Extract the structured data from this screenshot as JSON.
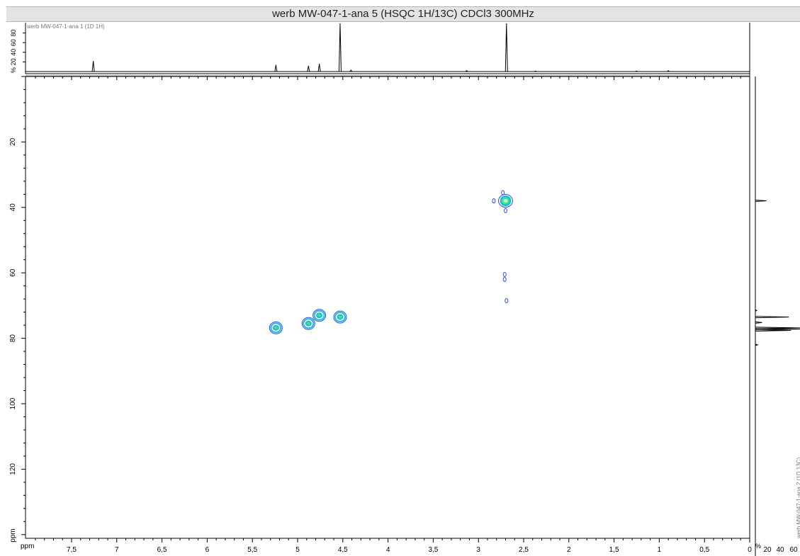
{
  "chart_data": {
    "type": "heatmap",
    "title": "werb MW-047-1-ana 5 (HSQC 1H/13C) CDCl3 300MHz",
    "x_unit_label": "ppm",
    "y_unit_label": "ppm",
    "xlim": [
      7.9,
      0
    ],
    "ylim": [
      0,
      140
    ],
    "x_ticks": [
      {
        "v": 7.5,
        "t": "7,5"
      },
      {
        "v": 7,
        "t": "7"
      },
      {
        "v": 6.5,
        "t": "6,5"
      },
      {
        "v": 6,
        "t": "6"
      },
      {
        "v": 5.5,
        "t": "5,5"
      },
      {
        "v": 5,
        "t": "5"
      },
      {
        "v": 4.5,
        "t": "4,5"
      },
      {
        "v": 4,
        "t": "4"
      },
      {
        "v": 3.5,
        "t": "3,5"
      },
      {
        "v": 3,
        "t": "3"
      },
      {
        "v": 2.5,
        "t": "2,5"
      },
      {
        "v": 2,
        "t": "2"
      },
      {
        "v": 1.5,
        "t": "1,5"
      },
      {
        "v": 1,
        "t": "1"
      },
      {
        "v": 0.5,
        "t": "0,5"
      },
      {
        "v": 0,
        "t": "0"
      }
    ],
    "y_ticks": [
      {
        "v": 20,
        "t": "20"
      },
      {
        "v": 40,
        "t": "40"
      },
      {
        "v": 60,
        "t": "60"
      },
      {
        "v": 80,
        "t": "80"
      },
      {
        "v": 100,
        "t": "100"
      },
      {
        "v": 120,
        "t": "120"
      }
    ],
    "cross_peaks": [
      {
        "h": 2.7,
        "c": 38,
        "intensity": "strong"
      },
      {
        "h": 2.73,
        "c": 35.5,
        "intensity": "weak"
      },
      {
        "h": 2.7,
        "c": 41,
        "intensity": "weak"
      },
      {
        "h": 2.83,
        "c": 38,
        "intensity": "weak"
      },
      {
        "h": 2.71,
        "c": 60.5,
        "intensity": "weak"
      },
      {
        "h": 2.71,
        "c": 62,
        "intensity": "weak"
      },
      {
        "h": 2.69,
        "c": 68.5,
        "intensity": "weak"
      },
      {
        "h": 5.24,
        "c": 76.8,
        "intensity": "medium"
      },
      {
        "h": 4.88,
        "c": 75.5,
        "intensity": "medium"
      },
      {
        "h": 4.76,
        "c": 73,
        "intensity": "medium"
      },
      {
        "h": 4.53,
        "c": 73.5,
        "intensity": "medium"
      }
    ],
    "top_spectrum": {
      "label": "werb MW-047-1-ana 1 (1D 1H)",
      "y_unit": "%",
      "y_ticks": [
        "20",
        "40",
        "60",
        "80"
      ],
      "peaks": [
        {
          "x": 7.26,
          "h": 22
        },
        {
          "x": 5.24,
          "h": 14
        },
        {
          "x": 4.88,
          "h": 12
        },
        {
          "x": 4.76,
          "h": 16
        },
        {
          "x": 4.53,
          "h": 100
        },
        {
          "x": 4.41,
          "h": 3
        },
        {
          "x": 3.13,
          "h": 2
        },
        {
          "x": 2.69,
          "h": 100
        },
        {
          "x": 2.37,
          "h": 1
        },
        {
          "x": 1.25,
          "h": 1
        },
        {
          "x": 0.9,
          "h": 2
        }
      ]
    },
    "side_spectrum": {
      "label": "werb MW-047-1-ana 2 (1D 13C)",
      "x_unit": "%",
      "x_ticks": [
        "20",
        "40",
        "60"
      ],
      "peaks": [
        {
          "c": 38,
          "h": 25
        },
        {
          "c": 71.5,
          "h": 3
        },
        {
          "c": 73.5,
          "h": 75
        },
        {
          "c": 75.2,
          "h": 15
        },
        {
          "c": 76.8,
          "h": 100
        },
        {
          "c": 77.2,
          "h": 100
        },
        {
          "c": 77.6,
          "h": 80
        },
        {
          "c": 82,
          "h": 5
        }
      ]
    },
    "colors": {
      "outer": "#2a4ff0",
      "mid": "#22b8d6",
      "inner": "#33e89a",
      "core": "#c9ffb0"
    }
  }
}
